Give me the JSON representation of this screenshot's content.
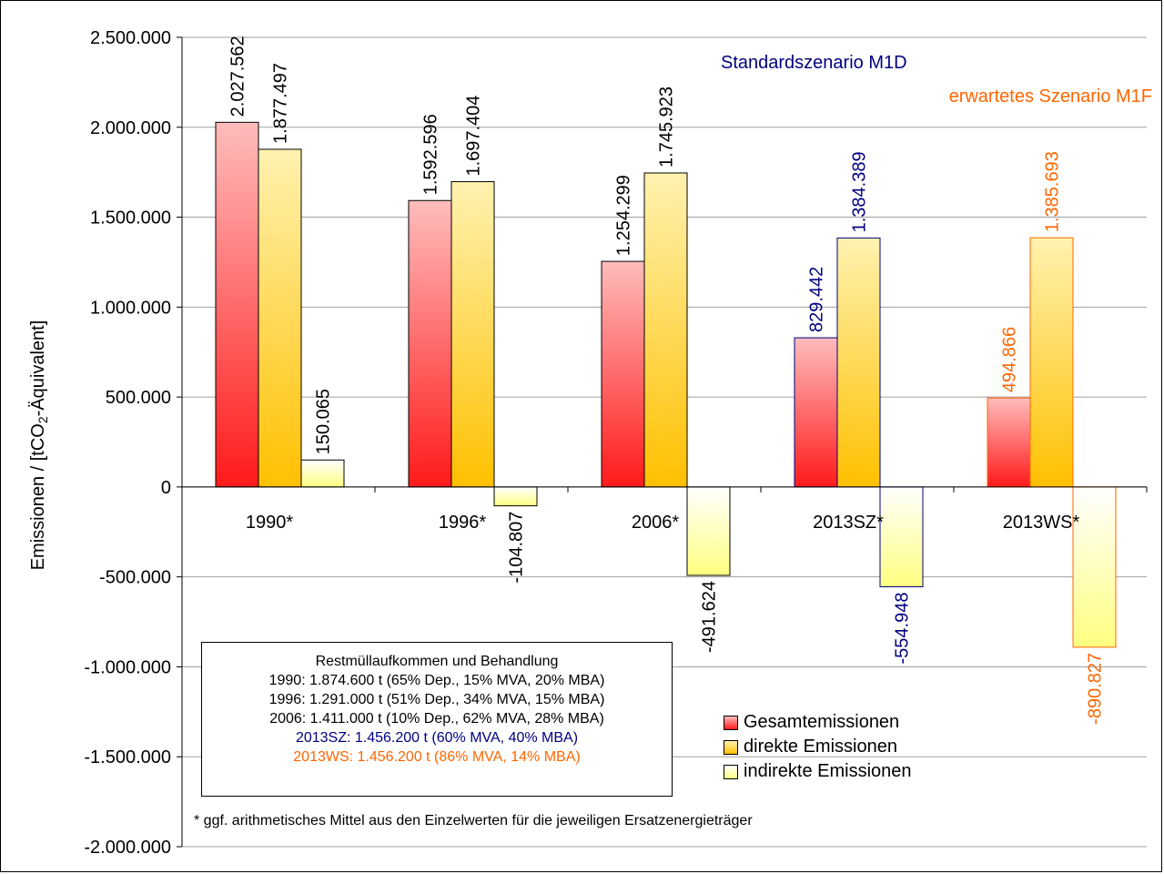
{
  "chart_data": {
    "type": "bar",
    "ylabel_pre": "Emissionen / [tCO",
    "ylabel_sub": "2",
    "ylabel_post": "-Äquivalent]",
    "ylim": [
      -2000000,
      2500000
    ],
    "yticks": [
      {
        "value": 2500000,
        "label": "2.500.000"
      },
      {
        "value": 2000000,
        "label": "2.000.000"
      },
      {
        "value": 1500000,
        "label": "1.500.000"
      },
      {
        "value": 1000000,
        "label": "1.000.000"
      },
      {
        "value": 500000,
        "label": "500.000"
      },
      {
        "value": 0,
        "label": "0"
      },
      {
        "value": -500000,
        "label": "-500.000"
      },
      {
        "value": -1000000,
        "label": "-1.000.000"
      },
      {
        "value": -1500000,
        "label": "-1.500.000"
      },
      {
        "value": -2000000,
        "label": "-2.000.000"
      }
    ],
    "grid": true,
    "categories": [
      "1990*",
      "1996*",
      "2006*",
      "2013SZ*",
      "2013WS*"
    ],
    "series": [
      {
        "name": "Gesamtemissionen",
        "values": [
          2027562,
          1592596,
          1254299,
          829442,
          494866
        ],
        "labels": [
          "2.027.562",
          "1.592.596",
          "1.254.299",
          "829.442",
          "494.866"
        ]
      },
      {
        "name": "direkte Emissionen",
        "values": [
          1877497,
          1697404,
          1745923,
          1384389,
          1385693
        ],
        "labels": [
          "1.877.497",
          "1.697.404",
          "1.745.923",
          "1.384.389",
          "1.385.693"
        ]
      },
      {
        "name": "indirekte Emissionen",
        "values": [
          150065,
          -104807,
          -491624,
          -554948,
          -890827
        ],
        "labels": [
          "150.065",
          "-104.807",
          "-491.624",
          "-554.948",
          "-890.827"
        ]
      }
    ],
    "category_colors": [
      "#000000",
      "#000000",
      "#000000",
      "#000080",
      "#ff6600"
    ],
    "legend_position": "bottom-right",
    "scenario_labels": [
      {
        "text": "Standardszenario M1D",
        "color": "#000080"
      },
      {
        "text": "erwartetes Szenario M1F",
        "color": "#ff6600"
      }
    ]
  },
  "info_box": {
    "title": "Restmüllaufkommen und Behandlung",
    "lines": [
      {
        "text": "1990: 1.874.600 t (65% Dep., 15% MVA, 20% MBA)",
        "color": "#000000"
      },
      {
        "text": "1996: 1.291.000 t (51% Dep., 34% MVA, 15% MBA)",
        "color": "#000000"
      },
      {
        "text": "2006: 1.411.000 t (10% Dep., 62% MVA, 28% MBA)",
        "color": "#000000"
      },
      {
        "text": "2013SZ: 1.456.200 t (60% MVA, 40% MBA)",
        "color": "#000080"
      },
      {
        "text": "2013WS: 1.456.200 t (86% MVA, 14% MBA)",
        "color": "#ff6600"
      }
    ]
  },
  "footnote": "* ggf. arithmetisches Mittel aus den Einzelwerten für die jeweiligen Ersatzenergieträger"
}
